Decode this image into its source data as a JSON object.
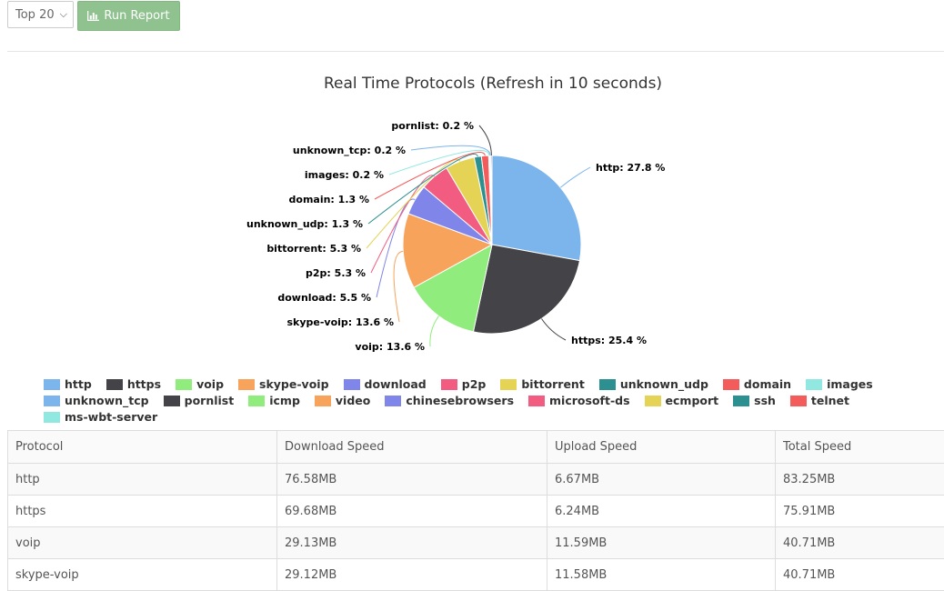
{
  "toolbar": {
    "select_value": "Top 20",
    "run_label": "Run Report"
  },
  "chart_data": {
    "type": "pie",
    "title": "Real Time Protocols (Refresh in 10 seconds)",
    "slices": [
      {
        "name": "http",
        "value": 27.8,
        "label": "http: 27.8 %",
        "color": "#7cb5ec"
      },
      {
        "name": "https",
        "value": 25.4,
        "label": "https: 25.4 %",
        "color": "#434348"
      },
      {
        "name": "voip",
        "value": 13.6,
        "label": "voip: 13.6 %",
        "color": "#90ed7d"
      },
      {
        "name": "skype-voip",
        "value": 13.6,
        "label": "skype-voip: 13.6 %",
        "color": "#f7a35c"
      },
      {
        "name": "download",
        "value": 5.5,
        "label": "download: 5.5 %",
        "color": "#8085e9"
      },
      {
        "name": "p2p",
        "value": 5.3,
        "label": "p2p: 5.3 %",
        "color": "#f15c80"
      },
      {
        "name": "bittorrent",
        "value": 5.3,
        "label": "bittorrent: 5.3 %",
        "color": "#e4d354"
      },
      {
        "name": "unknown_udp",
        "value": 1.3,
        "label": "unknown_udp: 1.3 %",
        "color": "#2b908f"
      },
      {
        "name": "domain",
        "value": 1.3,
        "label": "domain: 1.3 %",
        "color": "#f45b5b"
      },
      {
        "name": "images",
        "value": 0.2,
        "label": "images: 0.2 %",
        "color": "#91e8e1"
      },
      {
        "name": "unknown_tcp",
        "value": 0.2,
        "label": "unknown_tcp: 0.2 %",
        "color": "#7cb5ec"
      },
      {
        "name": "pornlist",
        "value": 0.2,
        "label": "pornlist: 0.2 %",
        "color": "#434348"
      }
    ],
    "legend": [
      {
        "name": "http",
        "color": "#7cb5ec"
      },
      {
        "name": "https",
        "color": "#434348"
      },
      {
        "name": "voip",
        "color": "#90ed7d"
      },
      {
        "name": "skype-voip",
        "color": "#f7a35c"
      },
      {
        "name": "download",
        "color": "#8085e9"
      },
      {
        "name": "p2p",
        "color": "#f15c80"
      },
      {
        "name": "bittorrent",
        "color": "#e4d354"
      },
      {
        "name": "unknown_udp",
        "color": "#2b908f"
      },
      {
        "name": "domain",
        "color": "#f45b5b"
      },
      {
        "name": "images",
        "color": "#91e8e1"
      },
      {
        "name": "unknown_tcp",
        "color": "#7cb5ec"
      },
      {
        "name": "pornlist",
        "color": "#434348"
      },
      {
        "name": "icmp",
        "color": "#90ed7d"
      },
      {
        "name": "video",
        "color": "#f7a35c"
      },
      {
        "name": "chinesebrowsers",
        "color": "#8085e9"
      },
      {
        "name": "microsoft-ds",
        "color": "#f15c80"
      },
      {
        "name": "ecmport",
        "color": "#e4d354"
      },
      {
        "name": "ssh",
        "color": "#2b908f"
      },
      {
        "name": "telnet",
        "color": "#f45b5b"
      },
      {
        "name": "ms-wbt-server",
        "color": "#91e8e1"
      }
    ]
  },
  "table": {
    "headers": [
      "Protocol",
      "Download Speed",
      "Upload Speed",
      "Total Speed"
    ],
    "rows": [
      [
        "http",
        "76.58MB",
        "6.67MB",
        "83.25MB"
      ],
      [
        "https",
        "69.68MB",
        "6.24MB",
        "75.91MB"
      ],
      [
        "voip",
        "29.13MB",
        "11.59MB",
        "40.71MB"
      ],
      [
        "skype-voip",
        "29.12MB",
        "11.58MB",
        "40.71MB"
      ]
    ]
  }
}
